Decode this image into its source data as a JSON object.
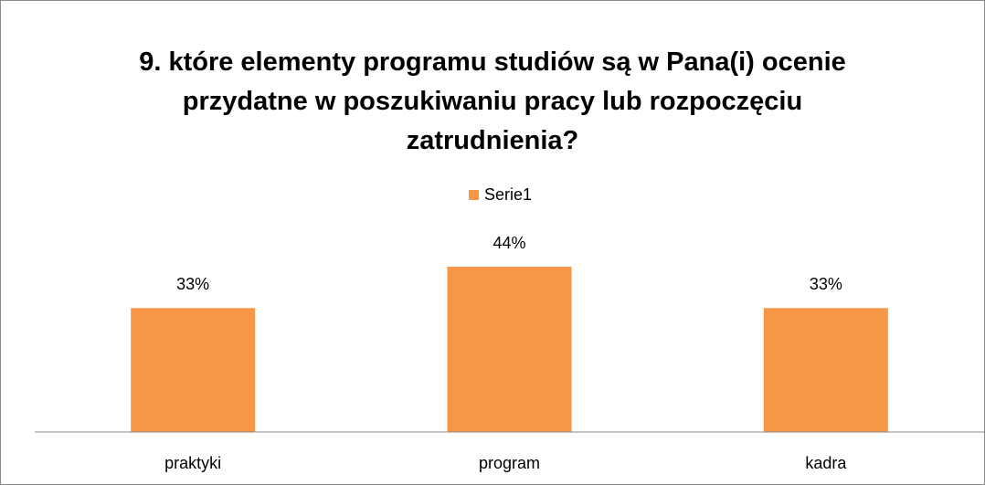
{
  "chart_data": {
    "type": "bar",
    "title": "9. które elementy programu studiów są w Pana(i) ocenie przydatne w poszukiwaniu pracy lub rozpoczęciu zatrudnienia?",
    "categories": [
      "praktyki",
      "program",
      "kadra"
    ],
    "series": [
      {
        "name": "Serie1",
        "color": "#f79646",
        "values": [
          33,
          44,
          33
        ],
        "value_labels": [
          "33%",
          "44%",
          "33%"
        ]
      }
    ]
  }
}
